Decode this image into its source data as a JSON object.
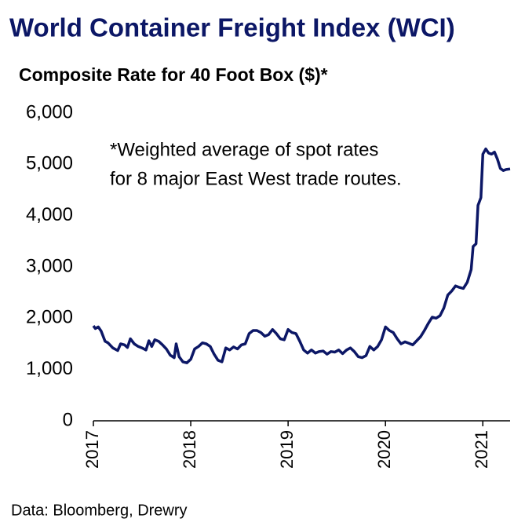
{
  "chart_data": {
    "type": "line",
    "title": "World Container Freight Index (WCI)",
    "subtitle": "Composite Rate for 40 Foot Box ($)*",
    "annotation": [
      "*Weighted average of spot rates",
      "for 8 major East West trade routes."
    ],
    "source": "Data: Bloomberg, Drewry",
    "xlim": [
      2017,
      2021.28
    ],
    "xticks": [
      2017,
      2018,
      2019,
      2020,
      2021
    ],
    "ylim": [
      0,
      6000
    ],
    "yticks": [
      0,
      {
        "value": 1000,
        "label": "1,000"
      },
      {
        "value": 2000,
        "label": "2,000"
      },
      {
        "value": 3000,
        "label": "3,000"
      },
      {
        "value": 4000,
        "label": "4,000"
      },
      {
        "value": 5000,
        "label": "5,000"
      },
      {
        "value": 6000,
        "label": "6,000"
      }
    ],
    "grid": false,
    "color": "#0c1766",
    "x": [
      2017.0,
      2017.02,
      2017.05,
      2017.08,
      2017.12,
      2017.15,
      2017.2,
      2017.25,
      2017.28,
      2017.32,
      2017.35,
      2017.38,
      2017.42,
      2017.46,
      2017.5,
      2017.54,
      2017.57,
      2017.6,
      2017.63,
      2017.67,
      2017.71,
      2017.75,
      2017.79,
      2017.83,
      2017.85,
      2017.88,
      2017.92,
      2017.96,
      2018.0,
      2018.04,
      2018.08,
      2018.12,
      2018.16,
      2018.2,
      2018.24,
      2018.28,
      2018.32,
      2018.36,
      2018.4,
      2018.44,
      2018.48,
      2018.52,
      2018.56,
      2018.6,
      2018.64,
      2018.68,
      2018.72,
      2018.76,
      2018.8,
      2018.84,
      2018.88,
      2018.92,
      2018.96,
      2019.0,
      2019.04,
      2019.08,
      2019.12,
      2019.16,
      2019.2,
      2019.24,
      2019.28,
      2019.32,
      2019.36,
      2019.4,
      2019.44,
      2019.48,
      2019.52,
      2019.56,
      2019.6,
      2019.64,
      2019.68,
      2019.72,
      2019.76,
      2019.8,
      2019.84,
      2019.88,
      2019.92,
      2019.96,
      2020.0,
      2020.04,
      2020.08,
      2020.12,
      2020.16,
      2020.2,
      2020.24,
      2020.28,
      2020.32,
      2020.36,
      2020.4,
      2020.44,
      2020.48,
      2020.52,
      2020.56,
      2020.6,
      2020.64,
      2020.68,
      2020.72,
      2020.76,
      2020.8,
      2020.84,
      2020.88,
      2020.9,
      2020.93,
      2020.95,
      2020.98,
      2021.0,
      2021.03,
      2021.06,
      2021.09,
      2021.12,
      2021.15,
      2021.18,
      2021.21,
      2021.24,
      2021.28
    ],
    "values": [
      1850,
      1800,
      1830,
      1750,
      1550,
      1520,
      1420,
      1370,
      1500,
      1480,
      1430,
      1600,
      1500,
      1450,
      1420,
      1380,
      1560,
      1450,
      1580,
      1550,
      1480,
      1400,
      1280,
      1230,
      1500,
      1250,
      1150,
      1130,
      1200,
      1400,
      1450,
      1520,
      1500,
      1450,
      1300,
      1180,
      1150,
      1420,
      1380,
      1440,
      1400,
      1480,
      1500,
      1700,
      1760,
      1760,
      1720,
      1650,
      1680,
      1780,
      1700,
      1600,
      1580,
      1780,
      1720,
      1700,
      1550,
      1380,
      1320,
      1380,
      1320,
      1350,
      1360,
      1300,
      1350,
      1340,
      1380,
      1310,
      1380,
      1420,
      1350,
      1250,
      1230,
      1270,
      1450,
      1380,
      1450,
      1580,
      1830,
      1760,
      1720,
      1600,
      1500,
      1540,
      1510,
      1480,
      1560,
      1640,
      1760,
      1900,
      2020,
      2000,
      2050,
      2200,
      2450,
      2530,
      2630,
      2600,
      2580,
      2700,
      2950,
      3400,
      3450,
      4200,
      4350,
      5200,
      5300,
      5220,
      5200,
      5240,
      5100,
      4920,
      4880,
      4900,
      4910
    ]
  }
}
